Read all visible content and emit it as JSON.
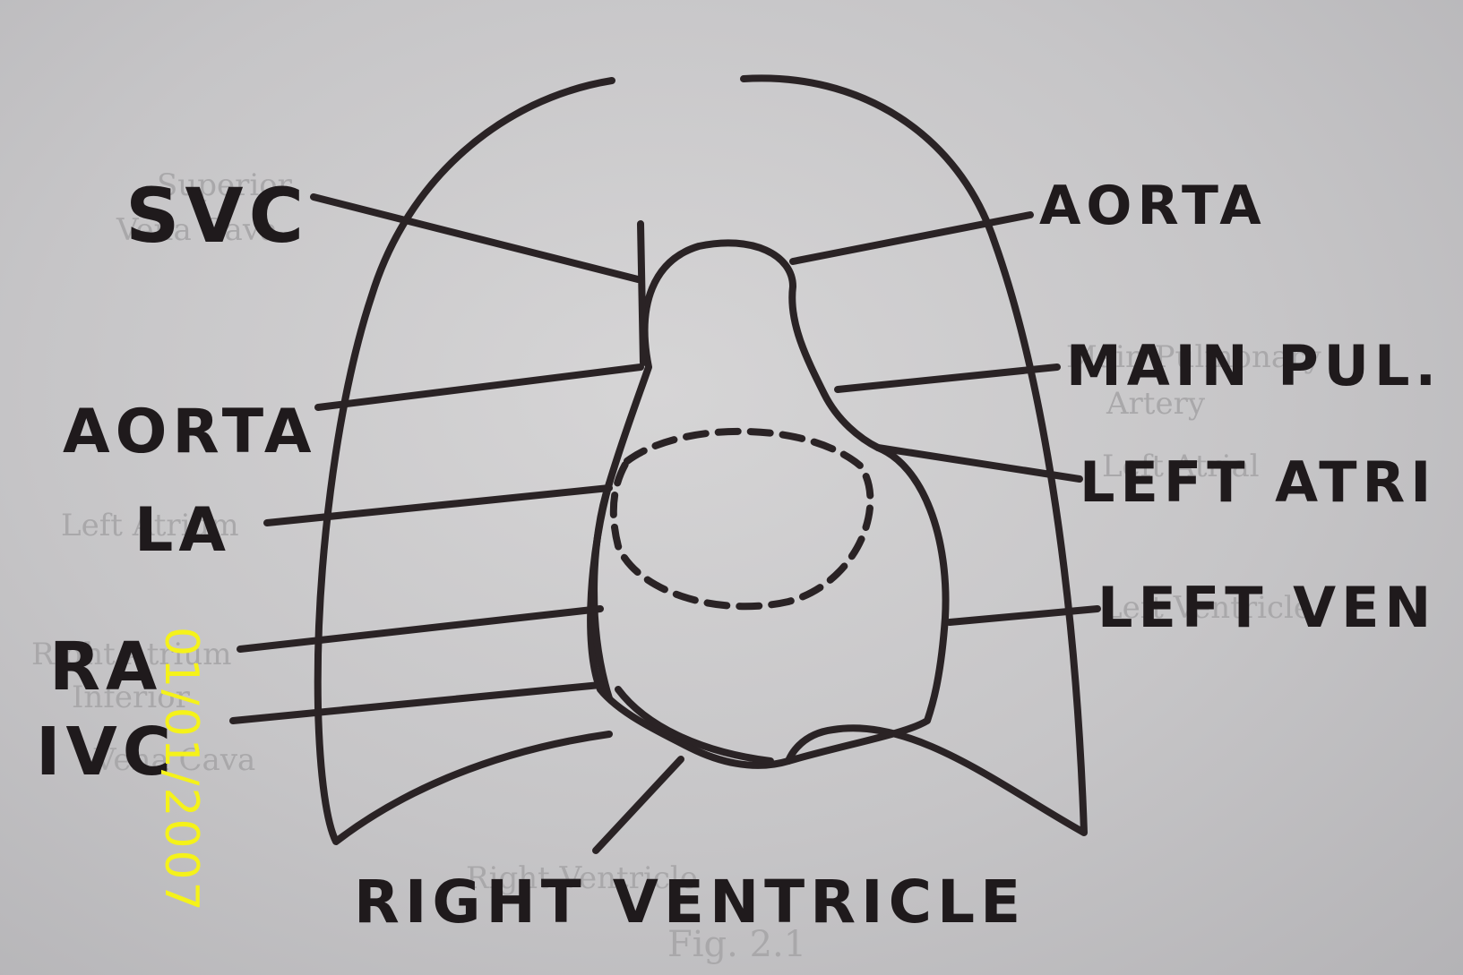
{
  "handwritten_labels": {
    "svc": "SVC",
    "aorta_left": "AORTA",
    "la": "LA",
    "ra": "RA",
    "ivc": "IVC",
    "aorta_right": "AORTA",
    "main_pul": "MAIN PUL.",
    "left_atri": "LEFT ATRI",
    "left_ven": "LEFT VEN",
    "right_ventricle": "RIGHT VENTRICLE"
  },
  "printed_labels": {
    "superior_vena_cava_1": "Superior",
    "superior_vena_cava_2": "Vena Cava",
    "left_atrium": "Left Atrium",
    "right_atrium": "Right Atrium",
    "inferior_vena_cava_1": "Inferior",
    "inferior_vena_cava_2": "Vena Cava",
    "pulmonary_1": "Main Pulmonary",
    "pulmonary_2": "Artery",
    "left_atrial": "Left Atrial",
    "left_ventricle": "Left Ventricle",
    "right_ventricle_printed": "Right Ventricle",
    "figure_caption": "Fig. 2.1"
  },
  "date_stamp": "01/01/2007",
  "colors": {
    "ink": "#2a2325",
    "paper": "#cfced0",
    "stamp": "#f5f21a"
  }
}
